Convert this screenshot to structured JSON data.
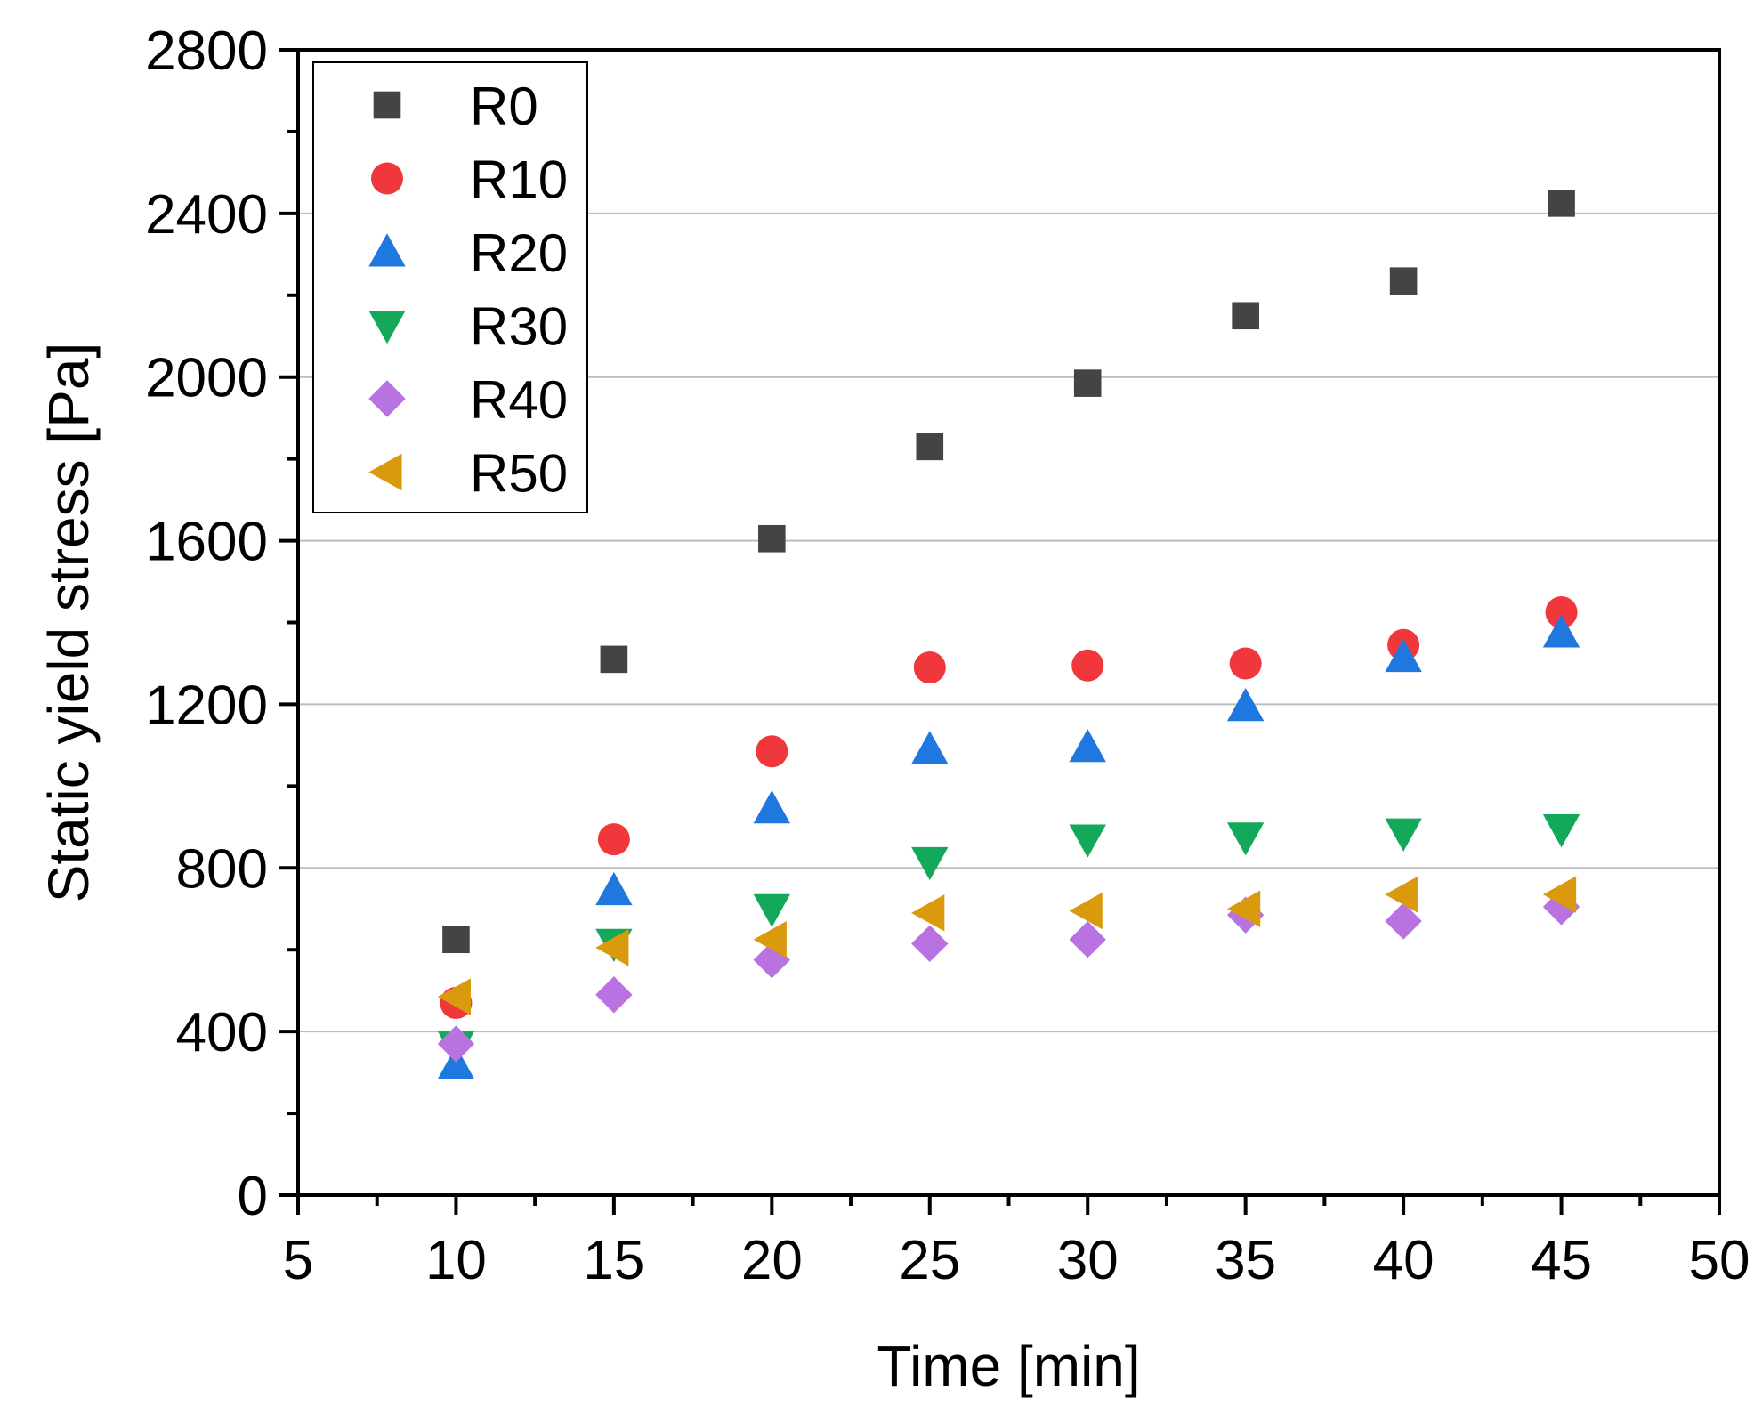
{
  "chart_data": {
    "type": "scatter",
    "xlabel": "Time [min]",
    "ylabel": "Static yield stress [Pa]",
    "xlim": [
      5,
      50
    ],
    "ylim": [
      0,
      2800
    ],
    "x_ticks": [
      5,
      10,
      15,
      20,
      25,
      30,
      35,
      40,
      45,
      50
    ],
    "x_tick_labels": [
      "5",
      "10",
      "15",
      "20",
      "25",
      "30",
      "35",
      "40",
      "45",
      "50"
    ],
    "y_ticks": [
      0,
      400,
      800,
      1200,
      1600,
      2000,
      2400,
      2800
    ],
    "y_tick_labels": [
      "0",
      "400",
      "800",
      "1200",
      "1600",
      "2000",
      "2400",
      "2800"
    ],
    "grid": "horizontal",
    "legend_position": "top-left",
    "x": [
      10,
      15,
      20,
      25,
      30,
      35,
      40,
      45
    ],
    "series": [
      {
        "name": "R0",
        "marker": "square",
        "color": "#444444",
        "values": [
          625,
          1310,
          1605,
          1830,
          1985,
          2150,
          2235,
          2425
        ]
      },
      {
        "name": "R10",
        "marker": "circle",
        "color": "#f0373c",
        "values": [
          470,
          870,
          1085,
          1290,
          1295,
          1300,
          1345,
          1425
        ]
      },
      {
        "name": "R20",
        "marker": "triangle-up",
        "color": "#1f78e0",
        "values": [
          320,
          745,
          945,
          1090,
          1095,
          1195,
          1315,
          1375
        ]
      },
      {
        "name": "R30",
        "marker": "triangle-down",
        "color": "#14a85a",
        "values": [
          365,
          615,
          700,
          815,
          870,
          875,
          885,
          895
        ]
      },
      {
        "name": "R40",
        "marker": "diamond",
        "color": "#b873e0",
        "values": [
          370,
          490,
          575,
          615,
          625,
          685,
          670,
          705
        ]
      },
      {
        "name": "R50",
        "marker": "triangle-left",
        "color": "#d99a0e",
        "values": [
          485,
          605,
          625,
          690,
          695,
          700,
          735,
          735
        ]
      }
    ]
  }
}
